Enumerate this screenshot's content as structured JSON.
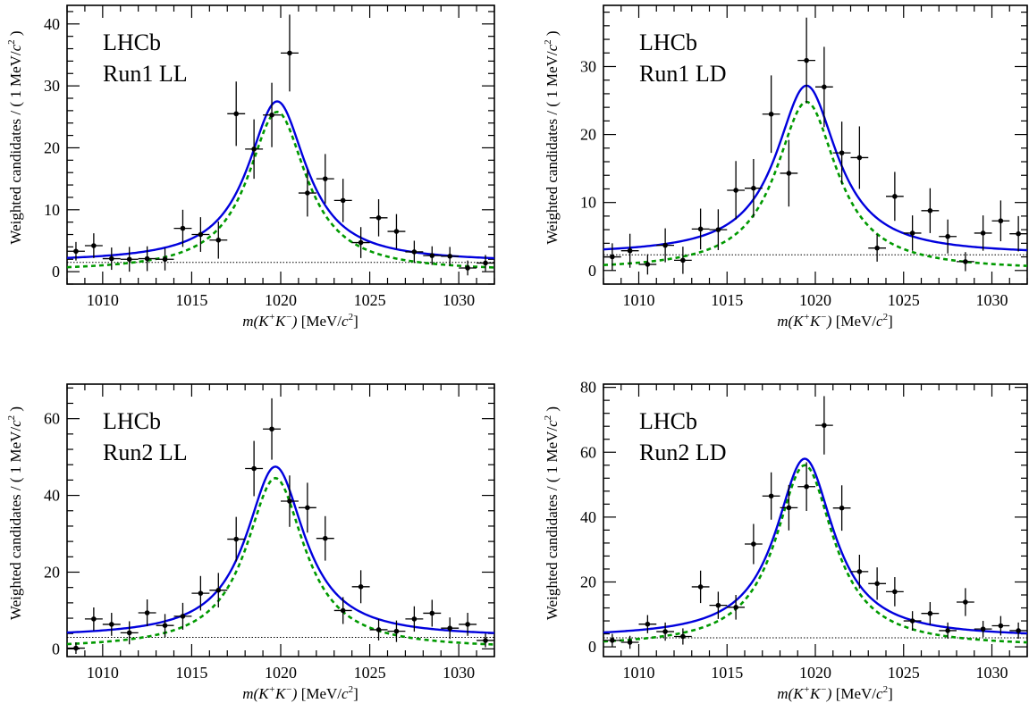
{
  "chart_data": [
    {
      "type": "scatter",
      "experiment_label": "LHCb",
      "dataset_label": "Run1 LL",
      "xlabel_var": "m(K",
      "xlabel_sup1": "+",
      "xlabel_mid": "K",
      "xlabel_sup2": "−",
      "xlabel_close": ")",
      "xlabel_unit": "[MeV/",
      "xlabel_c": "c",
      "xlabel_sup3": "2",
      "xlabel_end": "]",
      "ylabel": "Weighted candidates / ( 1 MeV/",
      "ylabel_c": "c",
      "ylabel_sup": "2",
      "ylabel_end": " )",
      "xlim": [
        1008,
        1032
      ],
      "ylim": [
        -2,
        43
      ],
      "xticks": [
        1010,
        1015,
        1020,
        1025,
        1030
      ],
      "yticks": [
        0,
        10,
        20,
        30,
        40
      ],
      "fit": {
        "total_peak": 27.5,
        "signal_peak": 25.8,
        "background": 1.5,
        "mass": 1019.8,
        "width": 4.0
      },
      "series": [
        {
          "x": [
            1008.5,
            1009.5,
            1010.5,
            1011.5,
            1012.5,
            1013.5,
            1014.5,
            1015.5,
            1016.5,
            1017.5,
            1018.5,
            1019.5,
            1020.5,
            1021.5,
            1022.5,
            1023.5,
            1024.5,
            1025.5,
            1026.5,
            1027.5,
            1028.5,
            1029.5,
            1030.5,
            1031.5
          ],
          "y": [
            3.3,
            4.2,
            2.1,
            2.0,
            2.1,
            2.0,
            7.0,
            6.0,
            5.1,
            25.5,
            19.8,
            25.3,
            35.3,
            12.7,
            15.0,
            11.5,
            4.7,
            8.7,
            6.5,
            3.2,
            2.6,
            2.5,
            0.6,
            1.4
          ],
          "err": [
            1.5,
            2.0,
            1.8,
            2.0,
            2.0,
            1.8,
            3.0,
            2.8,
            3.0,
            5.2,
            4.8,
            5.2,
            6.2,
            3.8,
            4.0,
            3.5,
            2.5,
            3.0,
            2.8,
            1.8,
            1.5,
            1.5,
            1.2,
            1.3
          ]
        }
      ]
    },
    {
      "type": "scatter",
      "experiment_label": "LHCb",
      "dataset_label": "Run1 LD",
      "xlabel_var": "m(K",
      "xlabel_sup1": "+",
      "xlabel_mid": "K",
      "xlabel_sup2": "−",
      "xlabel_close": ")",
      "xlabel_unit": "[MeV/",
      "xlabel_c": "c",
      "xlabel_sup3": "2",
      "xlabel_end": "]",
      "ylabel": "Weighted candidates / ( 1 MeV/",
      "ylabel_c": "c",
      "ylabel_sup": "2",
      "ylabel_end": " )",
      "xlim": [
        1008,
        1032
      ],
      "ylim": [
        -2,
        39
      ],
      "xticks": [
        1010,
        1015,
        1020,
        1025,
        1030
      ],
      "yticks": [
        0,
        10,
        20,
        30
      ],
      "fit": {
        "total_peak": 27.2,
        "signal_peak": 24.8,
        "background": 2.3,
        "mass": 1019.5,
        "width": 4.2
      },
      "series": [
        {
          "x": [
            1008.5,
            1009.5,
            1010.5,
            1011.5,
            1012.5,
            1013.5,
            1014.5,
            1015.5,
            1016.5,
            1017.5,
            1018.5,
            1019.5,
            1020.5,
            1021.5,
            1022.5,
            1023.5,
            1024.5,
            1025.5,
            1026.5,
            1027.5,
            1028.5,
            1029.5,
            1030.5,
            1031.5
          ],
          "y": [
            2.0,
            2.9,
            0.9,
            3.7,
            1.5,
            6.1,
            6.0,
            11.8,
            12.1,
            23.0,
            14.3,
            30.9,
            27.0,
            17.3,
            16.6,
            3.3,
            10.9,
            5.5,
            8.8,
            5.0,
            1.3,
            5.5,
            7.3,
            5.4
          ],
          "err": [
            2.0,
            2.5,
            1.5,
            2.5,
            2.0,
            3.0,
            3.0,
            4.3,
            4.3,
            5.7,
            4.9,
            6.3,
            5.9,
            4.6,
            4.6,
            2.0,
            3.6,
            2.6,
            3.3,
            2.5,
            1.4,
            2.6,
            3.0,
            2.6
          ]
        }
      ]
    },
    {
      "type": "scatter",
      "experiment_label": "LHCb",
      "dataset_label": "Run2 LL",
      "xlabel_var": "m(K",
      "xlabel_sup1": "+",
      "xlabel_mid": "K",
      "xlabel_sup2": "−",
      "xlabel_close": ")",
      "xlabel_unit": "[MeV/",
      "xlabel_c": "c",
      "xlabel_sup3": "2",
      "xlabel_end": "]",
      "ylabel": "Weighted candidates / ( 1 MeV/",
      "ylabel_c": "c",
      "ylabel_sup": "2",
      "ylabel_end": " )",
      "xlim": [
        1008,
        1032
      ],
      "ylim": [
        -2,
        69
      ],
      "xticks": [
        1010,
        1015,
        1020,
        1025,
        1030
      ],
      "yticks": [
        0,
        20,
        40,
        60
      ],
      "fit": {
        "total_peak": 47.5,
        "signal_peak": 44.5,
        "background": 3.0,
        "mass": 1019.7,
        "width": 4.0
      },
      "series": [
        {
          "x": [
            1008.5,
            1009.5,
            1010.5,
            1011.5,
            1012.5,
            1013.5,
            1014.5,
            1015.5,
            1016.5,
            1017.5,
            1018.5,
            1019.5,
            1020.5,
            1021.5,
            1022.5,
            1023.5,
            1024.5,
            1025.5,
            1026.5,
            1027.5,
            1028.5,
            1029.5,
            1030.5,
            1031.5
          ],
          "y": [
            0.2,
            7.8,
            6.4,
            4.2,
            9.4,
            6.1,
            8.5,
            14.5,
            15.3,
            28.6,
            47.0,
            57.3,
            38.5,
            36.8,
            28.8,
            10.0,
            16.2,
            5.0,
            4.6,
            7.8,
            9.3,
            5.4,
            6.4,
            2.2
          ],
          "err": [
            1.5,
            3.0,
            3.0,
            3.0,
            3.5,
            3.0,
            3.5,
            4.5,
            4.5,
            5.8,
            7.2,
            8.0,
            6.7,
            6.5,
            5.8,
            3.5,
            4.3,
            2.8,
            2.8,
            3.3,
            3.5,
            2.8,
            3.0,
            1.8
          ]
        }
      ]
    },
    {
      "type": "scatter",
      "experiment_label": "LHCb",
      "dataset_label": "Run2 LD",
      "xlabel_var": "m(K",
      "xlabel_sup1": "+",
      "xlabel_mid": "K",
      "xlabel_sup2": "−",
      "xlabel_close": ")",
      "xlabel_unit": "[MeV/",
      "xlabel_c": "c",
      "xlabel_sup3": "2",
      "xlabel_end": "]",
      "ylabel": "Weighted candidates / ( 1 MeV/",
      "ylabel_c": "c",
      "ylabel_sup": "2",
      "ylabel_end": " )",
      "xlim": [
        1008,
        1032
      ],
      "ylim": [
        -3,
        81
      ],
      "xticks": [
        1010,
        1015,
        1020,
        1025,
        1030
      ],
      "yticks": [
        0,
        20,
        40,
        60,
        80
      ],
      "fit": {
        "total_peak": 58.0,
        "signal_peak": 56.0,
        "background": 2.8,
        "mass": 1019.4,
        "width": 4.0
      },
      "series": [
        {
          "x": [
            1008.5,
            1009.5,
            1010.5,
            1011.5,
            1012.5,
            1013.5,
            1014.5,
            1015.5,
            1016.5,
            1017.5,
            1018.5,
            1019.5,
            1020.5,
            1021.5,
            1022.5,
            1023.5,
            1024.5,
            1025.5,
            1026.5,
            1027.5,
            1028.5,
            1029.5,
            1030.5,
            1031.5
          ],
          "y": [
            2.0,
            1.4,
            7.0,
            4.7,
            3.2,
            18.5,
            12.8,
            12.2,
            31.7,
            46.5,
            42.9,
            49.4,
            68.3,
            42.8,
            23.2,
            19.5,
            17.0,
            8.0,
            10.3,
            5.0,
            13.8,
            5.5,
            6.5,
            5.0
          ],
          "err": [
            2.0,
            2.0,
            2.8,
            2.8,
            2.5,
            5.0,
            4.2,
            3.8,
            6.2,
            7.3,
            7.0,
            7.5,
            9.0,
            7.0,
            5.2,
            5.0,
            4.5,
            3.0,
            3.5,
            2.5,
            4.3,
            2.5,
            3.0,
            2.5
          ]
        }
      ]
    }
  ],
  "colors": {
    "total_fit": "#0000dd",
    "signal_fit": "#009900",
    "background_fit": "#000000",
    "data": "#000000"
  }
}
